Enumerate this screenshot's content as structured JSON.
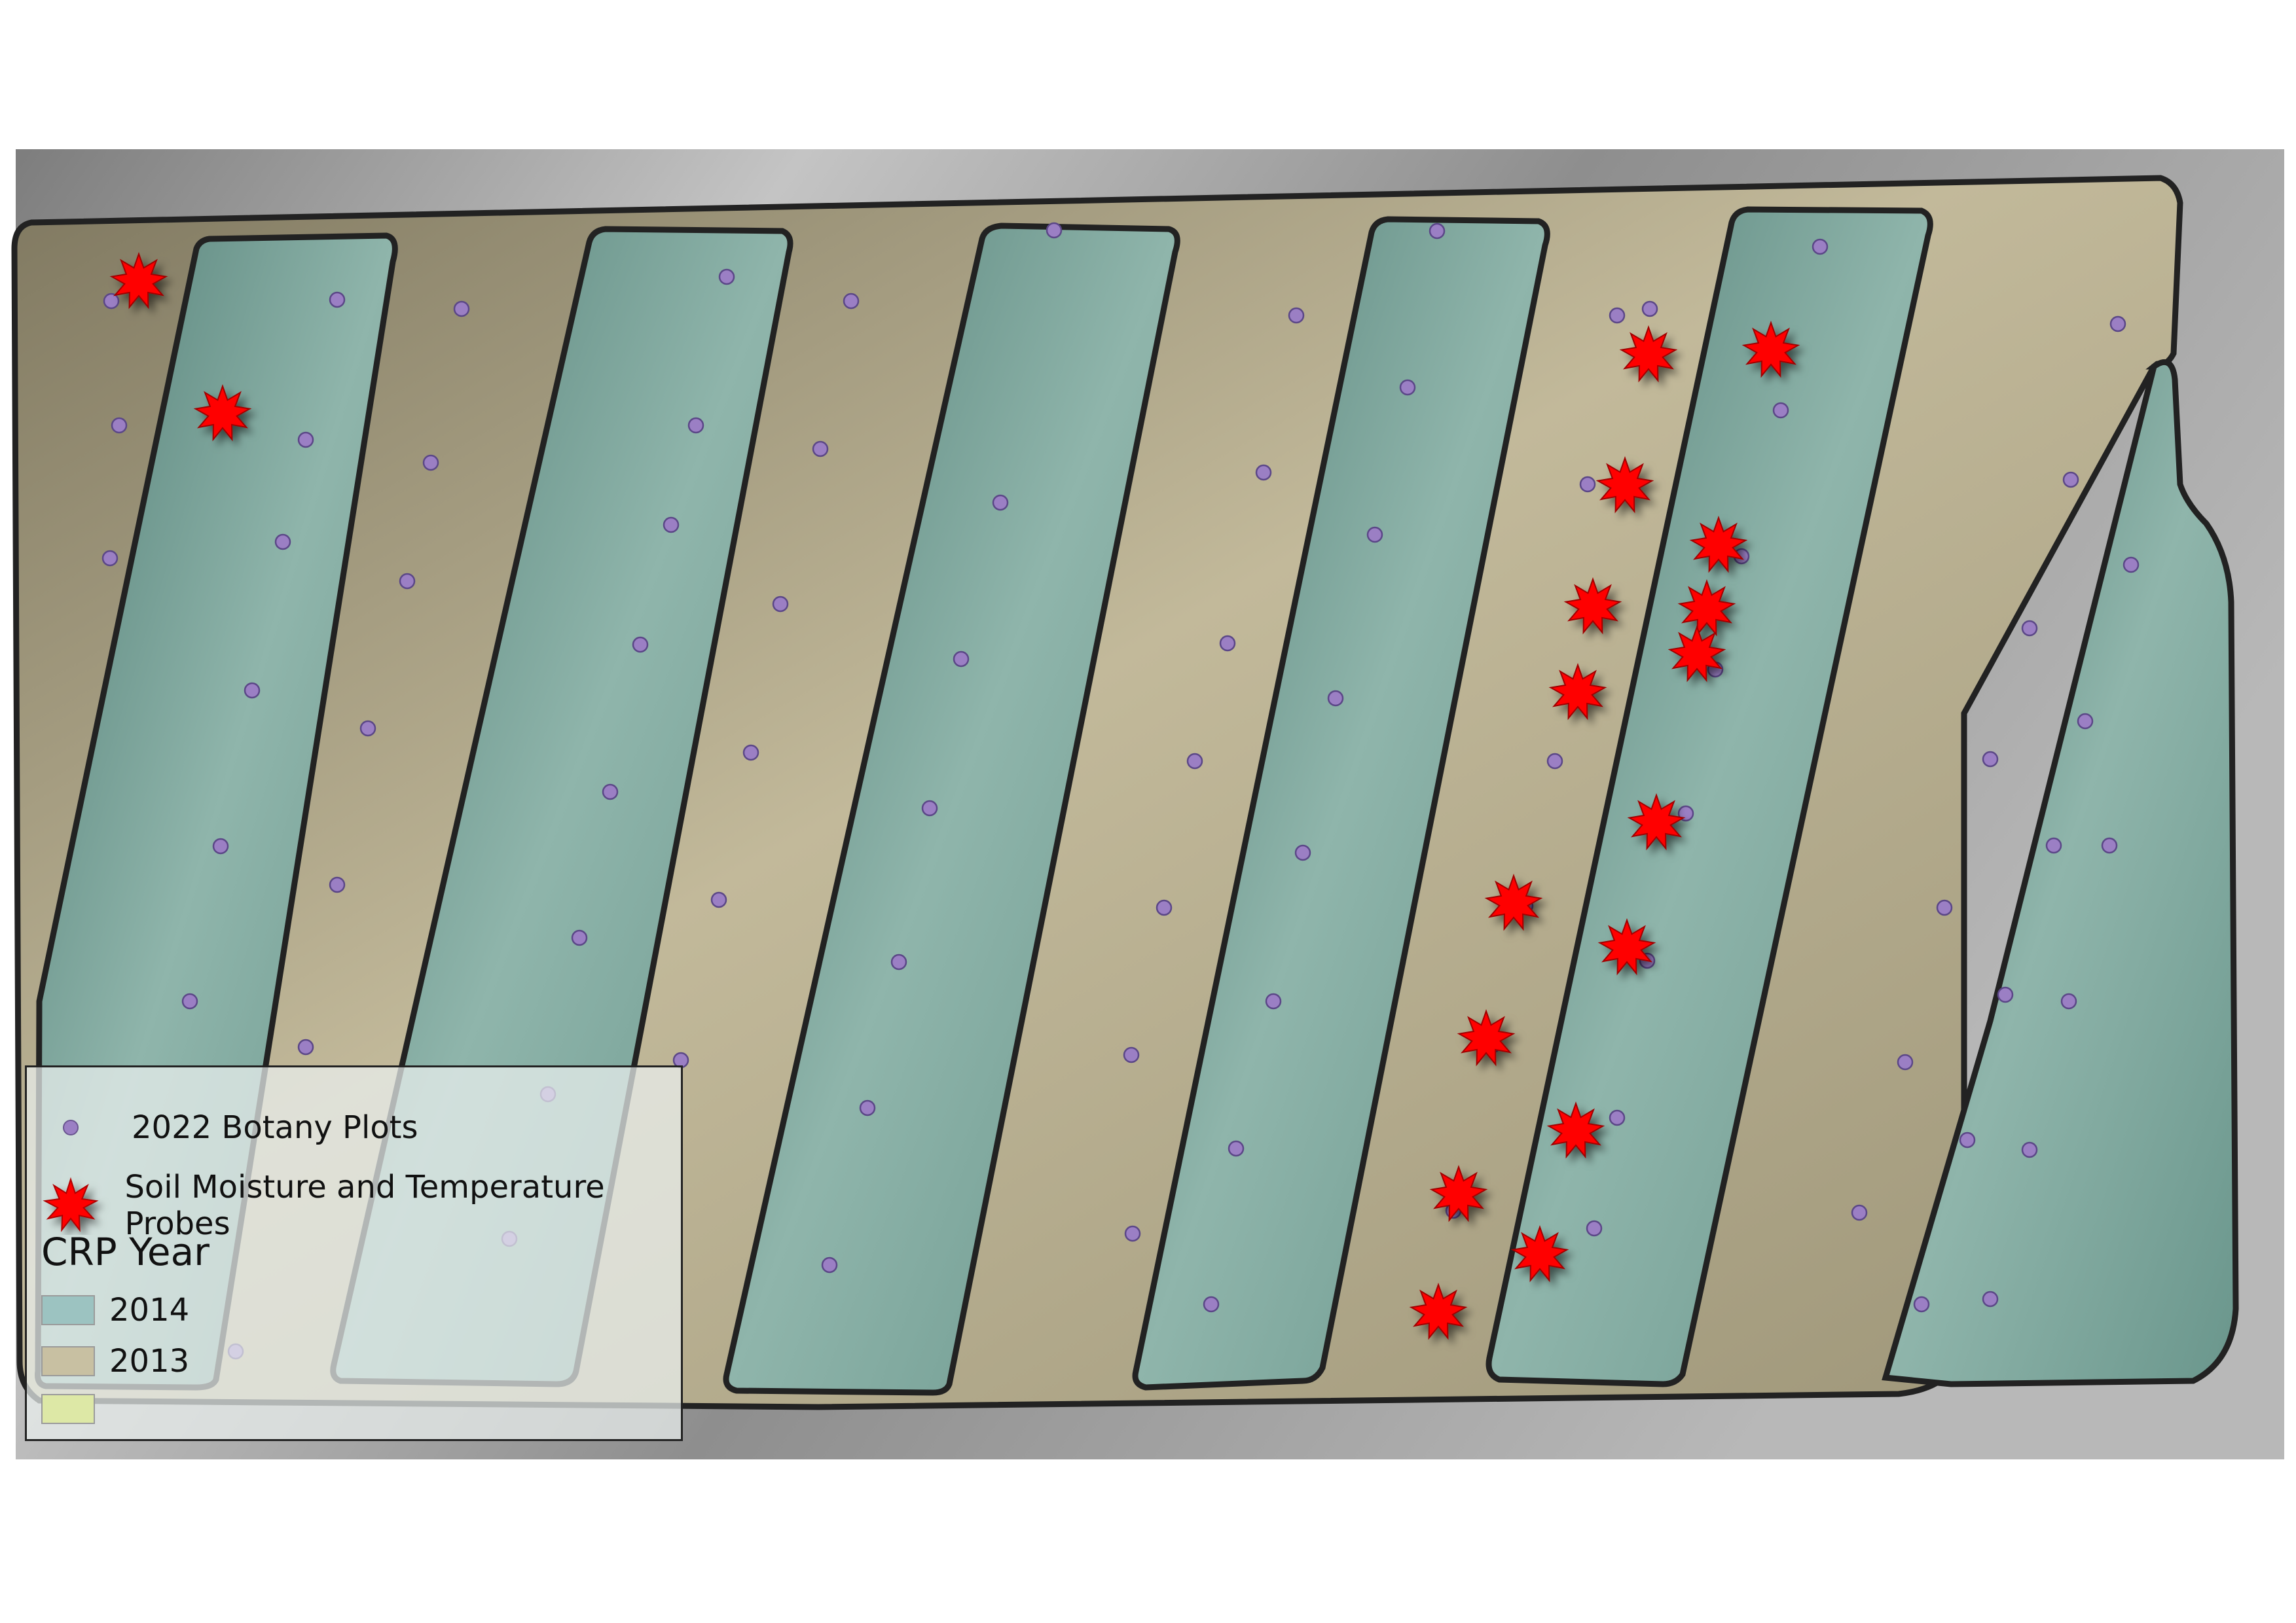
{
  "legend": {
    "botany_label": "2022 Botany Plots",
    "probe_label": "Soil Moisture and Temperature Probes",
    "crp_title": "CRP Year",
    "classes": [
      {
        "label": "2014",
        "color": "#9cc3c1"
      },
      {
        "label": "2013",
        "color": "#c8c0a2"
      },
      {
        "label": "",
        "color": "#dde8a6"
      }
    ]
  },
  "colors": {
    "crp_2014": "#5f8f86",
    "crp_2013": "#a89f7e",
    "botany_point": "#9b7fc4",
    "probe": "#ff0000",
    "outline": "#222222",
    "hillshade": "#9a9a9a"
  }
}
